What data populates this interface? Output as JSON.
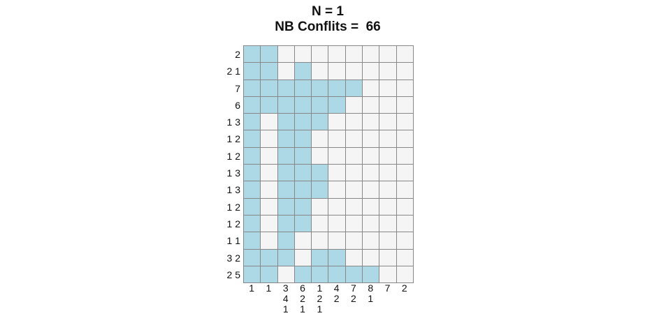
{
  "header": {
    "line1": "N = 1",
    "line2": "NB Conflits =  66"
  },
  "puzzle": {
    "colors": {
      "filled": "#add8e6",
      "empty": "#f5f5f5",
      "gridline": "#888888"
    },
    "row_clues": [
      "2",
      "2 1",
      "7",
      "6",
      "1 3",
      "1 2",
      "1 2",
      "1 3",
      "1 3",
      "1 2",
      "1 2",
      "1 1",
      "3 2",
      "2 5"
    ],
    "col_clues": [
      [
        "1"
      ],
      [
        "1"
      ],
      [
        "3",
        "4",
        "1"
      ],
      [
        "6",
        "2",
        "1"
      ],
      [
        "1",
        "2",
        "1"
      ],
      [
        "4",
        "2"
      ],
      [
        "7",
        "2"
      ],
      [
        "8",
        "1"
      ],
      [
        "7"
      ],
      [
        "2"
      ]
    ],
    "cells": [
      [
        1,
        1,
        0,
        0,
        0,
        0,
        0,
        0,
        0,
        0
      ],
      [
        1,
        1,
        0,
        1,
        0,
        0,
        0,
        0,
        0,
        0
      ],
      [
        1,
        1,
        1,
        1,
        1,
        1,
        1,
        0,
        0,
        0
      ],
      [
        1,
        1,
        1,
        1,
        1,
        1,
        0,
        0,
        0,
        0
      ],
      [
        1,
        0,
        1,
        1,
        1,
        0,
        0,
        0,
        0,
        0
      ],
      [
        1,
        0,
        1,
        1,
        0,
        0,
        0,
        0,
        0,
        0
      ],
      [
        1,
        0,
        1,
        1,
        0,
        0,
        0,
        0,
        0,
        0
      ],
      [
        1,
        0,
        1,
        1,
        1,
        0,
        0,
        0,
        0,
        0
      ],
      [
        1,
        0,
        1,
        1,
        1,
        0,
        0,
        0,
        0,
        0
      ],
      [
        1,
        0,
        1,
        1,
        0,
        0,
        0,
        0,
        0,
        0
      ],
      [
        1,
        0,
        1,
        1,
        0,
        0,
        0,
        0,
        0,
        0
      ],
      [
        1,
        0,
        1,
        0,
        0,
        0,
        0,
        0,
        0,
        0
      ],
      [
        1,
        1,
        1,
        0,
        1,
        1,
        0,
        0,
        0,
        0
      ],
      [
        1,
        1,
        0,
        1,
        1,
        1,
        1,
        1,
        0,
        0
      ]
    ]
  }
}
